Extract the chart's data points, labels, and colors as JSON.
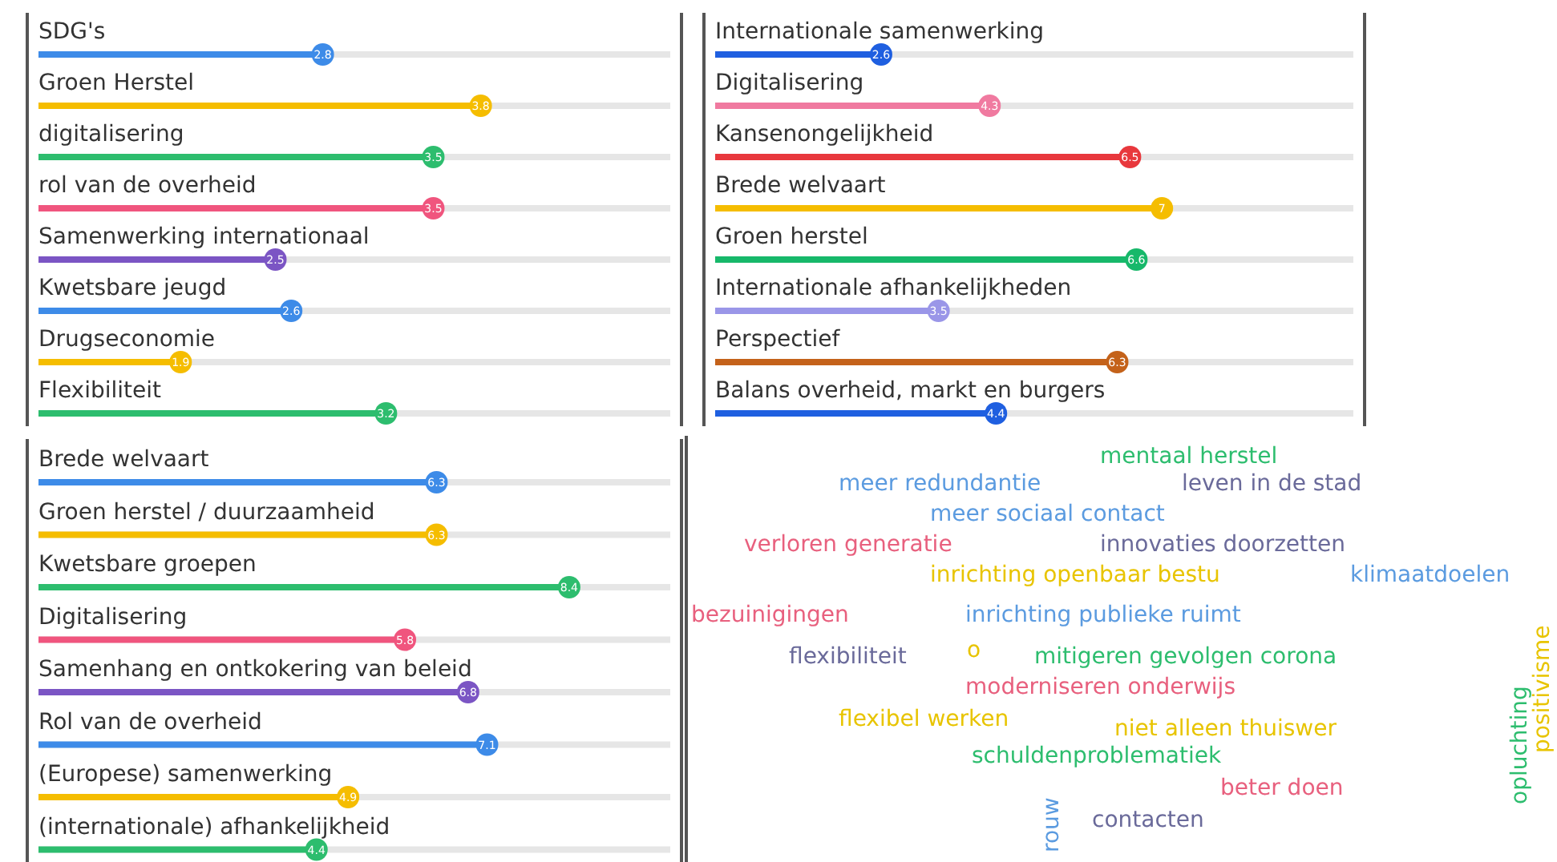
{
  "chart_data": [
    {
      "type": "lollipop",
      "orientation": "horizontal",
      "categories": [
        "SDG's",
        "Groen Herstel",
        "digitalisering",
        "rol van de overheid",
        "Samenwerking internationaal",
        "Kwetsbare jeugd",
        "Drugseconomie",
        "Flexibiliteit"
      ],
      "values": [
        2.8,
        3.8,
        3.5,
        3.5,
        2.5,
        2.6,
        1.9,
        3.2
      ],
      "colors": [
        "#3d8be8",
        "#f5bd00",
        "#2dbd6e",
        "#f0557e",
        "#7b55c4",
        "#3d8be8",
        "#f5bd00",
        "#2dbd6e"
      ],
      "xlim": [
        1,
        5
      ],
      "data_labels": true,
      "tick_labels": "y",
      "grid": "y"
    },
    {
      "type": "lollipop",
      "orientation": "horizontal",
      "categories": [
        "Internationale samenwerking",
        "Digitalisering",
        "Kansenongelijkheid",
        "Brede welvaart",
        "Groen herstel",
        "Internationale afhankelijkheden",
        "Perspectief",
        "Balans overheid, markt en burgers"
      ],
      "values": [
        2.6,
        4.3,
        6.5,
        7,
        6.6,
        3.5,
        6.3,
        4.4
      ],
      "colors": [
        "#1f5fe0",
        "#f07aa0",
        "#e8383d",
        "#f5bd00",
        "#17b86a",
        "#9a96e8",
        "#c4621a",
        "#1f5fe0"
      ],
      "xlim": [
        0,
        10
      ],
      "data_labels": true,
      "tick_labels": "y",
      "grid": "y"
    },
    {
      "type": "lollipop",
      "orientation": "horizontal",
      "categories": [
        "Brede welvaart",
        "Groen herstel / duurzaamheid",
        "Kwetsbare groepen",
        "Digitalisering",
        "Samenhang en ontkokering van beleid",
        "Rol van de overheid",
        "(Europese) samenwerking",
        "(internationale) afhankelijkheid"
      ],
      "values": [
        6.3,
        6.3,
        8.4,
        5.8,
        6.8,
        7.1,
        4.9,
        4.4
      ],
      "colors": [
        "#3d8be8",
        "#f5bd00",
        "#2dbd6e",
        "#f0557e",
        "#7b55c4",
        "#3d8be8",
        "#f5bd00",
        "#2dbd6e"
      ],
      "xlim": [
        0,
        10
      ],
      "data_labels": true,
      "tick_labels": "y",
      "grid": "y"
    },
    {
      "type": "other",
      "annotations": [
        "mentaal herstel",
        "meer redundantie",
        "leven in de stad",
        "meer sociaal contact",
        "verloren generatie",
        "innovaties doorzetten",
        "inrichting openbaar bestu",
        "klimaatdoelen",
        "bezuinigingen",
        "inrichting publieke ruimt",
        "flexibiliteit",
        "o",
        "mitigeren gevolgen corona",
        "moderniseren onderwijs",
        "flexibel werken",
        "niet alleen thuiswer",
        "schuldenproblematiek",
        "beter doen",
        "rouw",
        "contacten",
        "opluchting",
        "positivisme"
      ],
      "colors": [
        "#2dbd6e",
        "#5b9be0",
        "#6a6a9a",
        "#5b9be0",
        "#e8607e",
        "#6a6a9a",
        "#e8c400",
        "#5b9be0",
        "#e8607e",
        "#5b9be0",
        "#6a6a9a",
        "#e8c400",
        "#2dbd6e",
        "#e8607e",
        "#e8c400",
        "#e8c400",
        "#2dbd6e",
        "#e8607e",
        "#5b9be0",
        "#6a6a9a",
        "#2dbd6e",
        "#e8c400"
      ]
    }
  ]
}
